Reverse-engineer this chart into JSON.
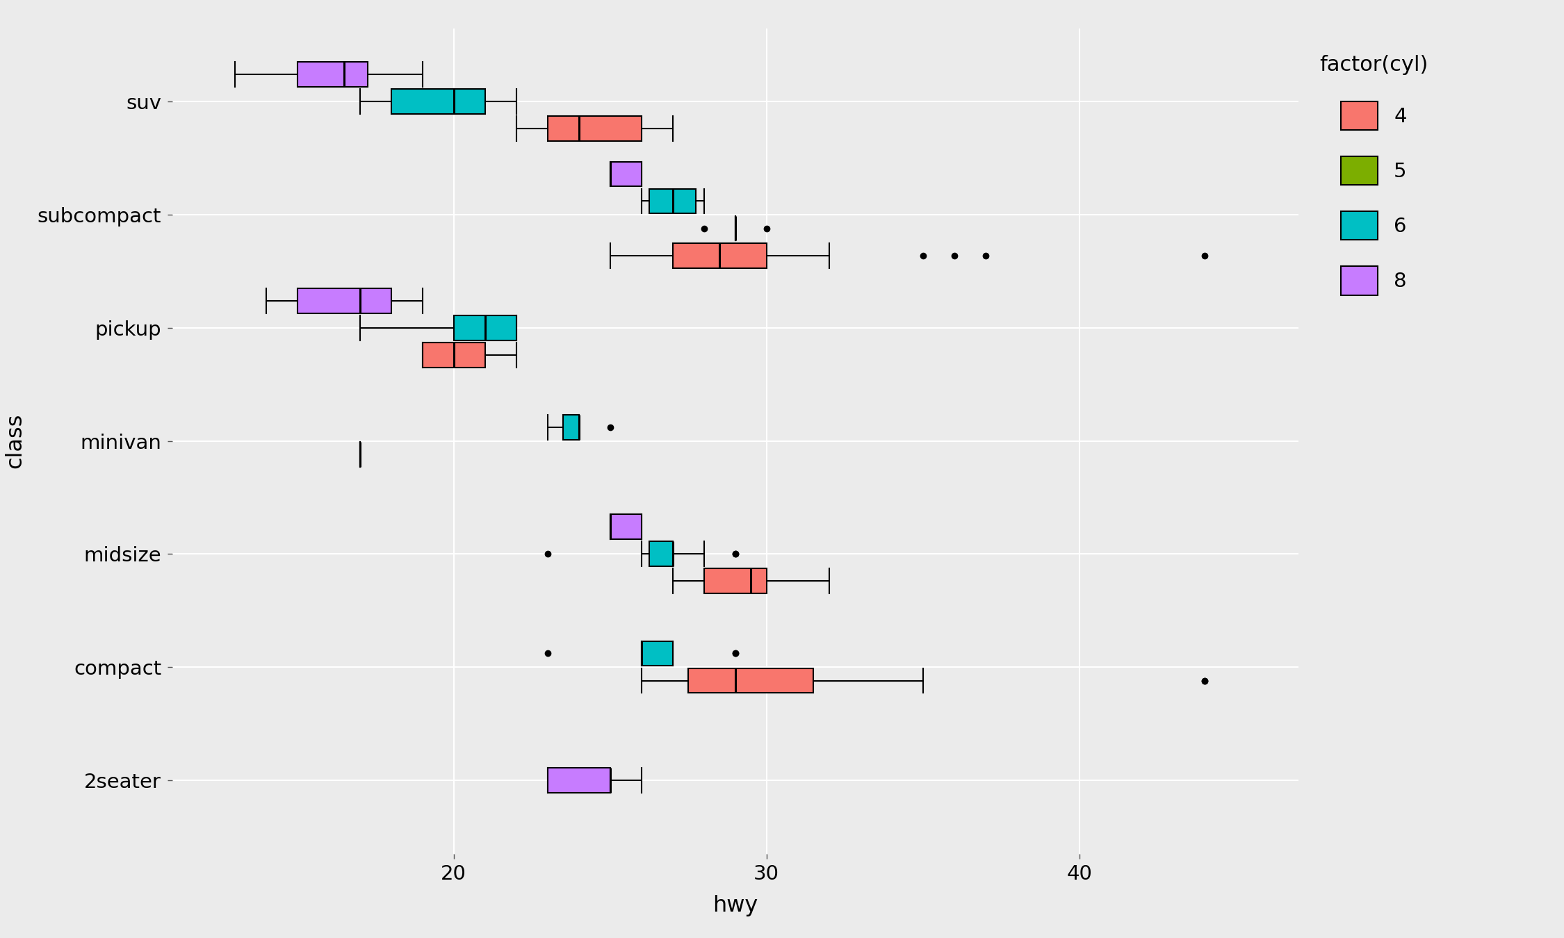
{
  "title": "",
  "xlabel": "hwy",
  "ylabel": "class",
  "background_color": "#EBEBEB",
  "grid_color": "#FFFFFF",
  "classes_top_to_bottom": [
    "suv",
    "subcompact",
    "pickup",
    "minivan",
    "midsize",
    "compact",
    "2seater"
  ],
  "cyl_colors": {
    "4": "#F8766D",
    "5": "#7CAE00",
    "6": "#00BFC4",
    "8": "#C77CFF"
  },
  "legend_title": "factor(cyl)",
  "xlim": [
    11,
    47
  ],
  "xticks": [
    20,
    30,
    40
  ]
}
